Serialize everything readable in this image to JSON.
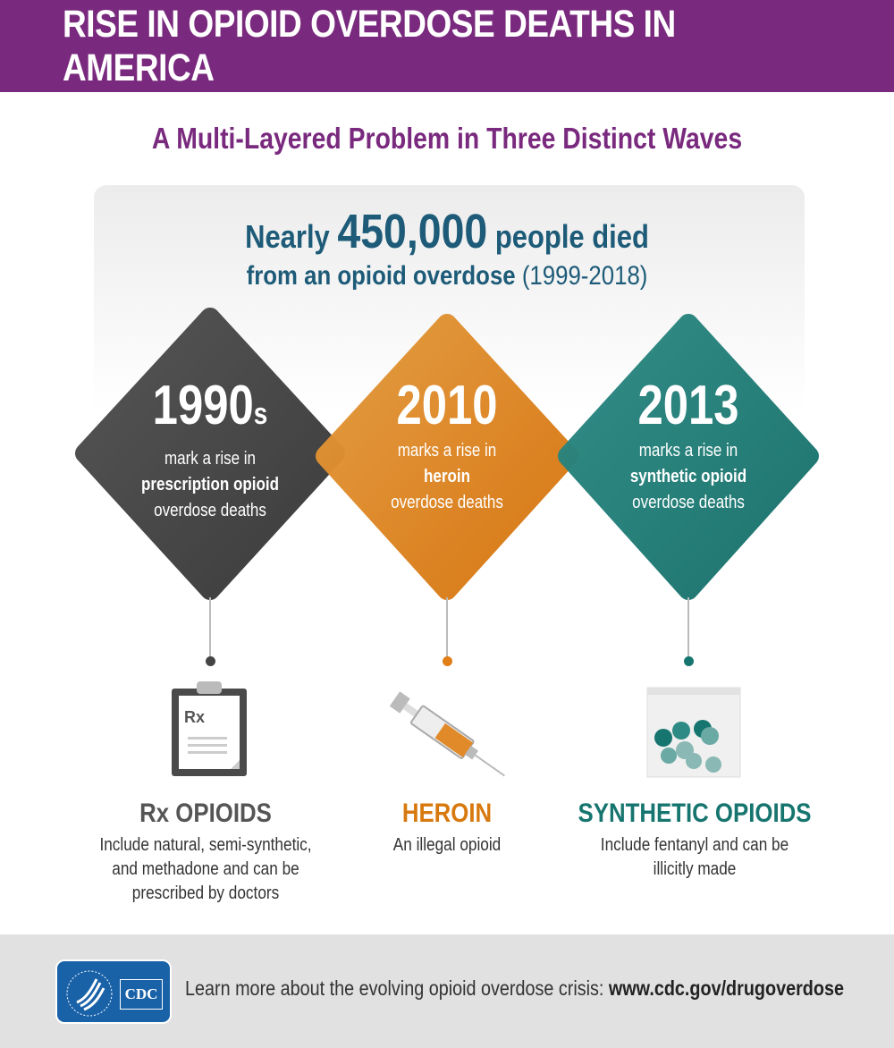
{
  "header": {
    "title": "RISE IN OPIOID OVERDOSE DEATHS IN AMERICA"
  },
  "subtitle": "A Multi-Layered Problem in Three Distinct Waves",
  "stat": {
    "prefix": "Nearly",
    "number": "450,000",
    "suffix": "people died",
    "line2_bold": "from an opioid overdose",
    "line2_years": "(1999-2018)"
  },
  "colors": {
    "purple": "#7a2a7e",
    "dark": "#444444",
    "orange": "#d8790f",
    "teal": "#17756f",
    "navy": "#1d5b78"
  },
  "waves": [
    {
      "year": "1990",
      "year_suffix": "s",
      "line1": "mark a rise in",
      "line2": "prescription opioid",
      "line3": "overdose deaths",
      "icon": "clipboard-rx-icon",
      "icon_text": "Rx",
      "title": "Rx OPIOIDS",
      "desc1": "Include natural, semi-synthetic,",
      "desc2": "and methadone and can be",
      "desc3": "prescribed by doctors"
    },
    {
      "year": "2010",
      "year_suffix": "",
      "line1": "marks a rise in",
      "line2": "heroin",
      "line3": "overdose deaths",
      "icon": "syringe-icon",
      "title": "HEROIN",
      "desc1": "An illegal opioid",
      "desc2": "",
      "desc3": ""
    },
    {
      "year": "2013",
      "year_suffix": "",
      "line1": "marks a rise in",
      "line2": "synthetic opioid",
      "line3": "overdose deaths",
      "icon": "pill-bag-icon",
      "title": "SYNTHETIC OPIOIDS",
      "desc1": "Include fentanyl and can be",
      "desc2": "illicitly made",
      "desc3": ""
    }
  ],
  "footer": {
    "logo_text": "CDC",
    "text": "Learn more about the evolving opioid overdose crisis:",
    "link": "www.cdc.gov/drugoverdose"
  }
}
